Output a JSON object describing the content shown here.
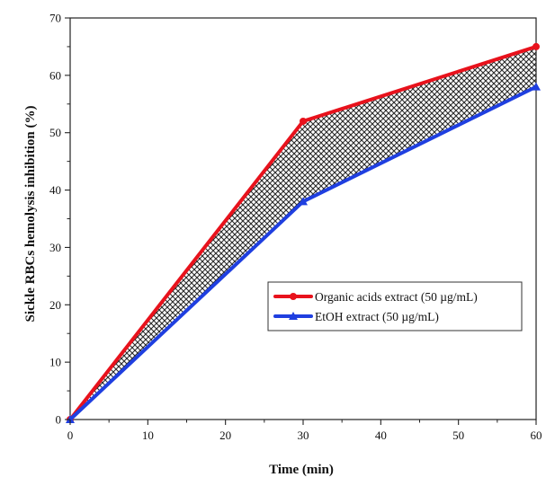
{
  "chart_data": {
    "type": "line",
    "title": "",
    "xlabel": "Time (min)",
    "ylabel": "Sickle RBCs hemolysis inhibition (%)",
    "xlim": [
      0,
      60
    ],
    "ylim": [
      0,
      70
    ],
    "xticks": [
      0,
      10,
      20,
      30,
      40,
      50,
      60
    ],
    "yticks": [
      0,
      10,
      20,
      30,
      40,
      50,
      60,
      70
    ],
    "x": [
      0,
      30,
      60
    ],
    "series": [
      {
        "name": "Organic acids extract (50 µg/mL)",
        "values": [
          0,
          52,
          65
        ],
        "color": "#e8121c",
        "marker": "circle"
      },
      {
        "name": "EtOH extract (50 µg/mL)",
        "values": [
          0,
          38,
          58
        ],
        "color": "#1f3fe0",
        "marker": "triangle"
      }
    ],
    "fill_between": {
      "pattern": "crosshatch",
      "color": "#222222"
    },
    "grid": false,
    "legend_position": "center-right"
  }
}
